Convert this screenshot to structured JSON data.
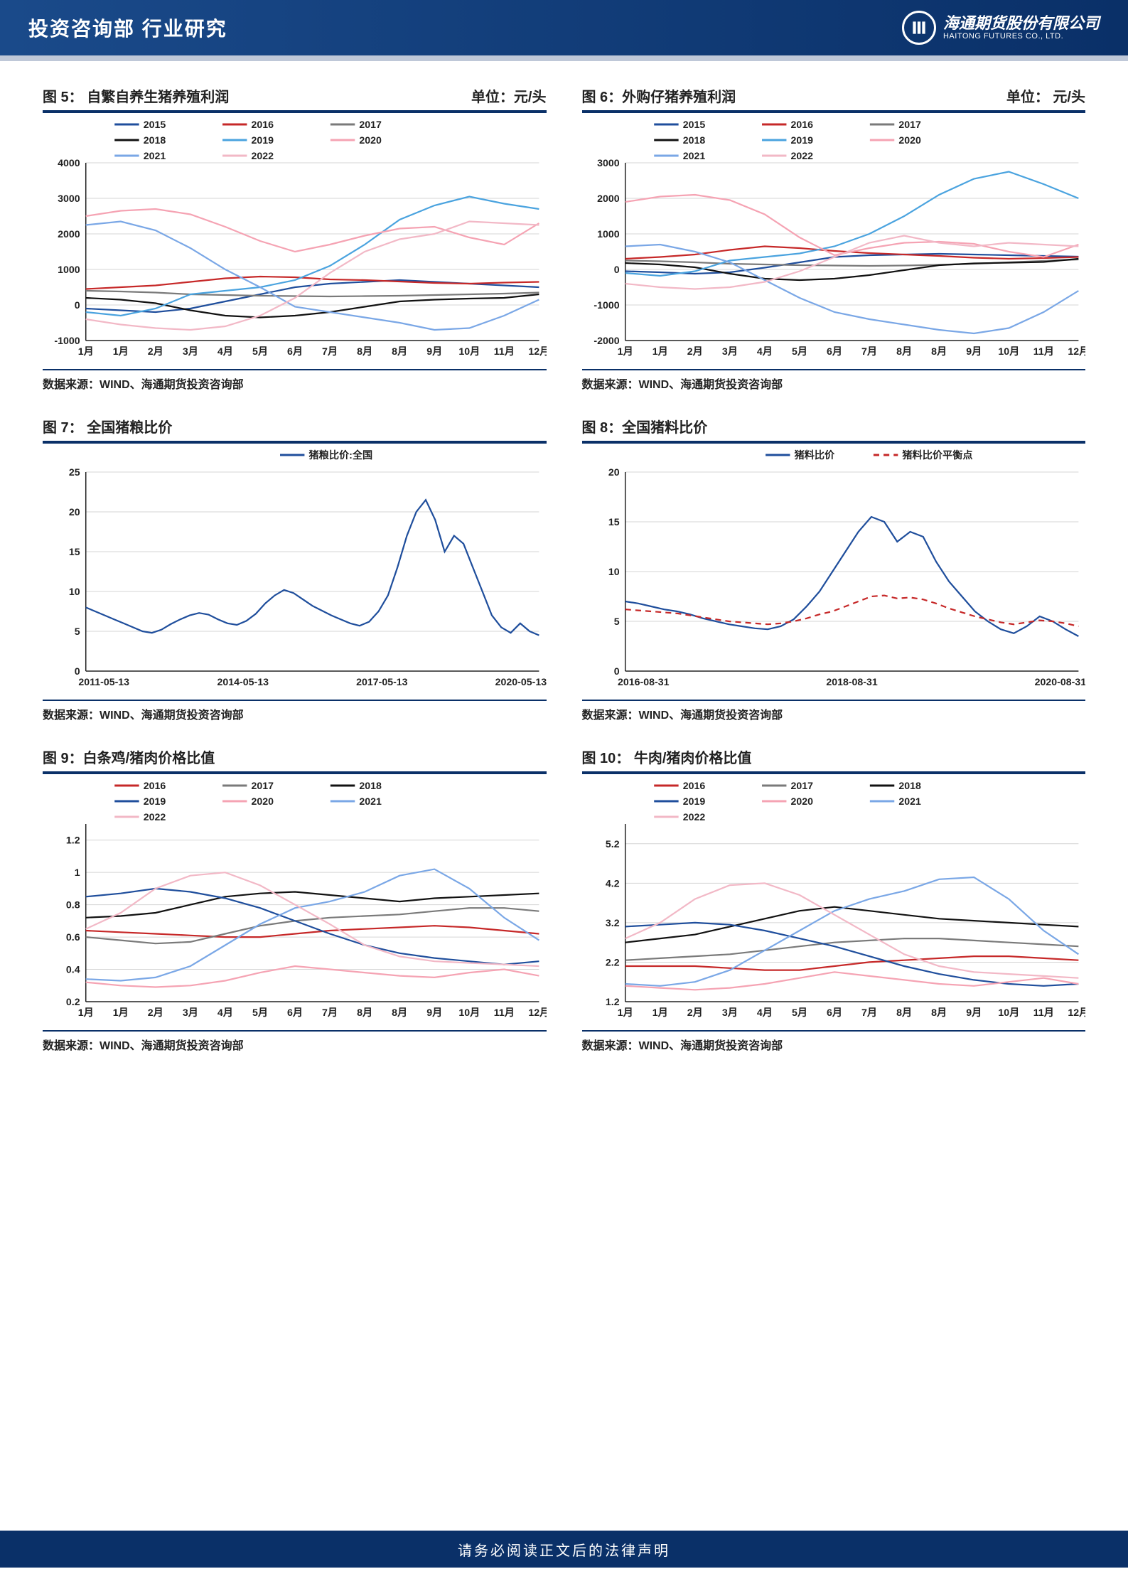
{
  "header": {
    "title": "投资咨询部   行业研究",
    "logo_cn": "海通期货股份有限公司",
    "logo_en": "HAITONG FUTURES CO., LTD."
  },
  "footer": {
    "disclaimer": "请务必阅读正文后的法律声明"
  },
  "shared": {
    "source_label": "数据来源：WIND、海通期货投资咨询部",
    "months": [
      "1月",
      "1月",
      "2月",
      "3月",
      "4月",
      "5月",
      "6月",
      "7月",
      "8月",
      "8月",
      "9月",
      "10月",
      "11月",
      "12月"
    ],
    "palette": {
      "2015": "#1f4e9c",
      "2016": "#c62828",
      "2017": "#7a7a7a",
      "2018": "#111111",
      "2019": "#4aa3df",
      "2020": "#f5a3b3",
      "2021": "#7aa7e6",
      "2022": "#f2b8c6"
    },
    "axis_fontsize": 14,
    "grid_color": "#d5d5d5",
    "axis_color": "#222222"
  },
  "charts": [
    {
      "id": "fig5",
      "title": "图 5：  自繁自养生猪养殖利润",
      "unit": "单位：元/头",
      "type": "line",
      "xkind": "months",
      "ylim": [
        -1000,
        4000
      ],
      "ytick_step": 1000,
      "legend_cols": 3,
      "series": [
        {
          "name": "2015",
          "color": "#1f4e9c",
          "data": [
            -100,
            -150,
            -200,
            -100,
            100,
            300,
            500,
            600,
            650,
            700,
            650,
            600,
            550,
            500
          ]
        },
        {
          "name": "2016",
          "color": "#c62828",
          "data": [
            450,
            500,
            550,
            650,
            750,
            800,
            780,
            720,
            700,
            660,
            620,
            600,
            630,
            650
          ]
        },
        {
          "name": "2017",
          "color": "#7a7a7a",
          "data": [
            400,
            380,
            350,
            300,
            280,
            260,
            250,
            240,
            250,
            260,
            280,
            300,
            320,
            350
          ]
        },
        {
          "name": "2018",
          "color": "#111111",
          "data": [
            200,
            150,
            50,
            -150,
            -300,
            -350,
            -300,
            -200,
            -50,
            100,
            150,
            180,
            200,
            300
          ]
        },
        {
          "name": "2019",
          "color": "#4aa3df",
          "data": [
            -200,
            -300,
            -100,
            300,
            400,
            500,
            700,
            1100,
            1700,
            2400,
            2800,
            3050,
            2850,
            2700
          ]
        },
        {
          "name": "2020",
          "color": "#f5a3b3",
          "data": [
            2500,
            2650,
            2700,
            2550,
            2200,
            1800,
            1500,
            1700,
            1950,
            2150,
            2200,
            1900,
            1700,
            2300
          ]
        },
        {
          "name": "2021",
          "color": "#7aa7e6",
          "data": [
            2250,
            2350,
            2100,
            1600,
            1000,
            500,
            -50,
            -200,
            -350,
            -500,
            -700,
            -650,
            -300,
            150
          ]
        },
        {
          "name": "2022",
          "color": "#f2b8c6",
          "data": [
            -400,
            -550,
            -650,
            -700,
            -600,
            -300,
            200,
            900,
            1500,
            1850,
            2000,
            2350,
            2300,
            2250
          ]
        }
      ]
    },
    {
      "id": "fig6",
      "title": "图 6：外购仔猪养殖利润",
      "unit": "单位：  元/头",
      "type": "line",
      "xkind": "months",
      "ylim": [
        -2000,
        3000
      ],
      "ytick_step": 1000,
      "legend_cols": 3,
      "series": [
        {
          "name": "2015",
          "color": "#1f4e9c",
          "data": [
            -50,
            -80,
            -120,
            -80,
            50,
            200,
            350,
            400,
            420,
            440,
            420,
            400,
            380,
            360
          ]
        },
        {
          "name": "2016",
          "color": "#c62828",
          "data": [
            300,
            350,
            420,
            550,
            650,
            600,
            520,
            460,
            420,
            380,
            330,
            300,
            320,
            350
          ]
        },
        {
          "name": "2017",
          "color": "#7a7a7a",
          "data": [
            250,
            230,
            200,
            160,
            140,
            120,
            110,
            100,
            110,
            130,
            160,
            200,
            240,
            280
          ]
        },
        {
          "name": "2018",
          "color": "#111111",
          "data": [
            180,
            140,
            60,
            -120,
            -260,
            -300,
            -260,
            -160,
            -20,
            120,
            170,
            190,
            210,
            300
          ]
        },
        {
          "name": "2019",
          "color": "#4aa3df",
          "data": [
            -100,
            -180,
            -50,
            250,
            350,
            450,
            650,
            1000,
            1500,
            2100,
            2550,
            2750,
            2400,
            2000
          ]
        },
        {
          "name": "2020",
          "color": "#f5a3b3",
          "data": [
            1900,
            2050,
            2100,
            1950,
            1550,
            900,
            400,
            600,
            750,
            780,
            720,
            500,
            350,
            700
          ]
        },
        {
          "name": "2021",
          "color": "#7aa7e6",
          "data": [
            650,
            700,
            500,
            200,
            -300,
            -800,
            -1200,
            -1400,
            -1550,
            -1700,
            -1800,
            -1650,
            -1200,
            -600
          ]
        },
        {
          "name": "2022",
          "color": "#f2b8c6",
          "data": [
            -400,
            -500,
            -550,
            -500,
            -350,
            -50,
            350,
            750,
            950,
            750,
            650,
            750,
            700,
            650
          ]
        }
      ]
    },
    {
      "id": "fig7",
      "title": "图 7：     全国猪粮比价",
      "unit": "",
      "type": "line",
      "xkind": "dates",
      "xticks": [
        "2011-05-13",
        "2014-05-13",
        "2017-05-13",
        "2020-05-13"
      ],
      "ylim": [
        0,
        25
      ],
      "ytick_step": 5,
      "legend_cols": 1,
      "legend_center": true,
      "series": [
        {
          "name": "猪粮比价:全国",
          "color": "#1f4e9c",
          "data": [
            8,
            7.5,
            7,
            6.5,
            6,
            5.5,
            5,
            4.8,
            5.2,
            5.9,
            6.5,
            7,
            7.3,
            7.1,
            6.5,
            6,
            5.8,
            6.3,
            7.2,
            8.5,
            9.5,
            10.2,
            9.8,
            9,
            8.2,
            7.6,
            7,
            6.5,
            6,
            5.7,
            6.2,
            7.5,
            9.5,
            13,
            17,
            20,
            21.5,
            19,
            15,
            17,
            16,
            13,
            10,
            7,
            5.5,
            4.8,
            6,
            5,
            4.5
          ]
        }
      ]
    },
    {
      "id": "fig8",
      "title": "图 8：全国猪料比价",
      "unit": "",
      "type": "line",
      "xkind": "dates",
      "xticks": [
        "2016-08-31",
        "2018-08-31",
        "2020-08-31"
      ],
      "ylim": [
        0,
        20
      ],
      "ytick_step": 5,
      "legend_cols": 2,
      "legend_center": true,
      "series": [
        {
          "name": "猪料比价",
          "color": "#1f4e9c",
          "data": [
            7,
            6.8,
            6.5,
            6.2,
            6,
            5.7,
            5.3,
            5,
            4.7,
            4.5,
            4.3,
            4.2,
            4.5,
            5.2,
            6.5,
            8,
            10,
            12,
            14,
            15.5,
            15,
            13,
            14,
            13.5,
            11,
            9,
            7.5,
            6,
            5,
            4.2,
            3.8,
            4.5,
            5.5,
            5,
            4.2,
            3.5
          ]
        },
        {
          "name": "猪料比价平衡点",
          "color": "#c62828",
          "dash": true,
          "data": [
            6.2,
            6.1,
            6,
            5.9,
            5.8,
            5.6,
            5.4,
            5.2,
            5,
            4.9,
            4.8,
            4.7,
            4.8,
            5,
            5.3,
            5.7,
            6,
            6.5,
            7,
            7.5,
            7.6,
            7.3,
            7.4,
            7.2,
            6.8,
            6.3,
            5.9,
            5.5,
            5.2,
            4.9,
            4.7,
            4.9,
            5.1,
            5,
            4.8,
            4.5
          ]
        }
      ]
    },
    {
      "id": "fig9",
      "title": "图 9：白条鸡/猪肉价格比值",
      "unit": "",
      "type": "line",
      "xkind": "months",
      "ylim": [
        0.2,
        1.3
      ],
      "ytick_step": 0.2,
      "decimals": 1,
      "extra_ticks": [
        1
      ],
      "legend_cols": 3,
      "series": [
        {
          "name": "2016",
          "color": "#c62828",
          "data": [
            0.64,
            0.63,
            0.62,
            0.61,
            0.6,
            0.6,
            0.62,
            0.64,
            0.65,
            0.66,
            0.67,
            0.66,
            0.64,
            0.62
          ]
        },
        {
          "name": "2017",
          "color": "#7a7a7a",
          "data": [
            0.6,
            0.58,
            0.56,
            0.57,
            0.62,
            0.67,
            0.7,
            0.72,
            0.73,
            0.74,
            0.76,
            0.78,
            0.78,
            0.76
          ]
        },
        {
          "name": "2018",
          "color": "#111111",
          "data": [
            0.72,
            0.73,
            0.75,
            0.8,
            0.85,
            0.87,
            0.88,
            0.86,
            0.84,
            0.82,
            0.84,
            0.85,
            0.86,
            0.87
          ]
        },
        {
          "name": "2019",
          "color": "#1f4e9c",
          "data": [
            0.85,
            0.87,
            0.9,
            0.88,
            0.84,
            0.78,
            0.7,
            0.62,
            0.55,
            0.5,
            0.47,
            0.45,
            0.43,
            0.45
          ]
        },
        {
          "name": "2020",
          "color": "#f5a3b3",
          "data": [
            0.32,
            0.3,
            0.29,
            0.3,
            0.33,
            0.38,
            0.42,
            0.4,
            0.38,
            0.36,
            0.35,
            0.38,
            0.4,
            0.36
          ]
        },
        {
          "name": "2021",
          "color": "#7aa7e6",
          "data": [
            0.34,
            0.33,
            0.35,
            0.42,
            0.55,
            0.68,
            0.78,
            0.82,
            0.88,
            0.98,
            1.02,
            0.9,
            0.72,
            0.58
          ]
        },
        {
          "name": "2022",
          "color": "#f2b8c6",
          "data": [
            0.65,
            0.75,
            0.9,
            0.98,
            1.0,
            0.92,
            0.8,
            0.68,
            0.55,
            0.48,
            0.45,
            0.44,
            0.43,
            0.42
          ]
        }
      ]
    },
    {
      "id": "fig10",
      "title": "图 10：   牛肉/猪肉价格比值",
      "unit": "",
      "type": "line",
      "xkind": "months",
      "ylim": [
        1.2,
        5.7
      ],
      "ytick_step": 1.0,
      "decimals": 1,
      "ytick_start": 1.2,
      "legend_cols": 3,
      "series": [
        {
          "name": "2016",
          "color": "#c62828",
          "data": [
            2.1,
            2.1,
            2.1,
            2.05,
            2.0,
            2.0,
            2.1,
            2.2,
            2.25,
            2.3,
            2.35,
            2.35,
            2.3,
            2.25
          ]
        },
        {
          "name": "2017",
          "color": "#7a7a7a",
          "data": [
            2.25,
            2.3,
            2.35,
            2.4,
            2.5,
            2.6,
            2.7,
            2.75,
            2.8,
            2.8,
            2.75,
            2.7,
            2.65,
            2.6
          ]
        },
        {
          "name": "2018",
          "color": "#111111",
          "data": [
            2.7,
            2.8,
            2.9,
            3.1,
            3.3,
            3.5,
            3.6,
            3.5,
            3.4,
            3.3,
            3.25,
            3.2,
            3.15,
            3.1
          ]
        },
        {
          "name": "2019",
          "color": "#1f4e9c",
          "data": [
            3.1,
            3.15,
            3.2,
            3.15,
            3.0,
            2.8,
            2.6,
            2.35,
            2.1,
            1.9,
            1.75,
            1.65,
            1.6,
            1.65
          ]
        },
        {
          "name": "2020",
          "color": "#f5a3b3",
          "data": [
            1.6,
            1.55,
            1.5,
            1.55,
            1.65,
            1.8,
            1.95,
            1.85,
            1.75,
            1.65,
            1.6,
            1.7,
            1.8,
            1.65
          ]
        },
        {
          "name": "2021",
          "color": "#7aa7e6",
          "data": [
            1.65,
            1.6,
            1.7,
            2.0,
            2.5,
            3.0,
            3.5,
            3.8,
            4.0,
            4.3,
            4.35,
            3.8,
            3.0,
            2.4
          ]
        },
        {
          "name": "2022",
          "color": "#f2b8c6",
          "data": [
            2.8,
            3.2,
            3.8,
            4.15,
            4.2,
            3.9,
            3.4,
            2.9,
            2.4,
            2.1,
            1.95,
            1.9,
            1.85,
            1.8
          ]
        }
      ]
    }
  ]
}
